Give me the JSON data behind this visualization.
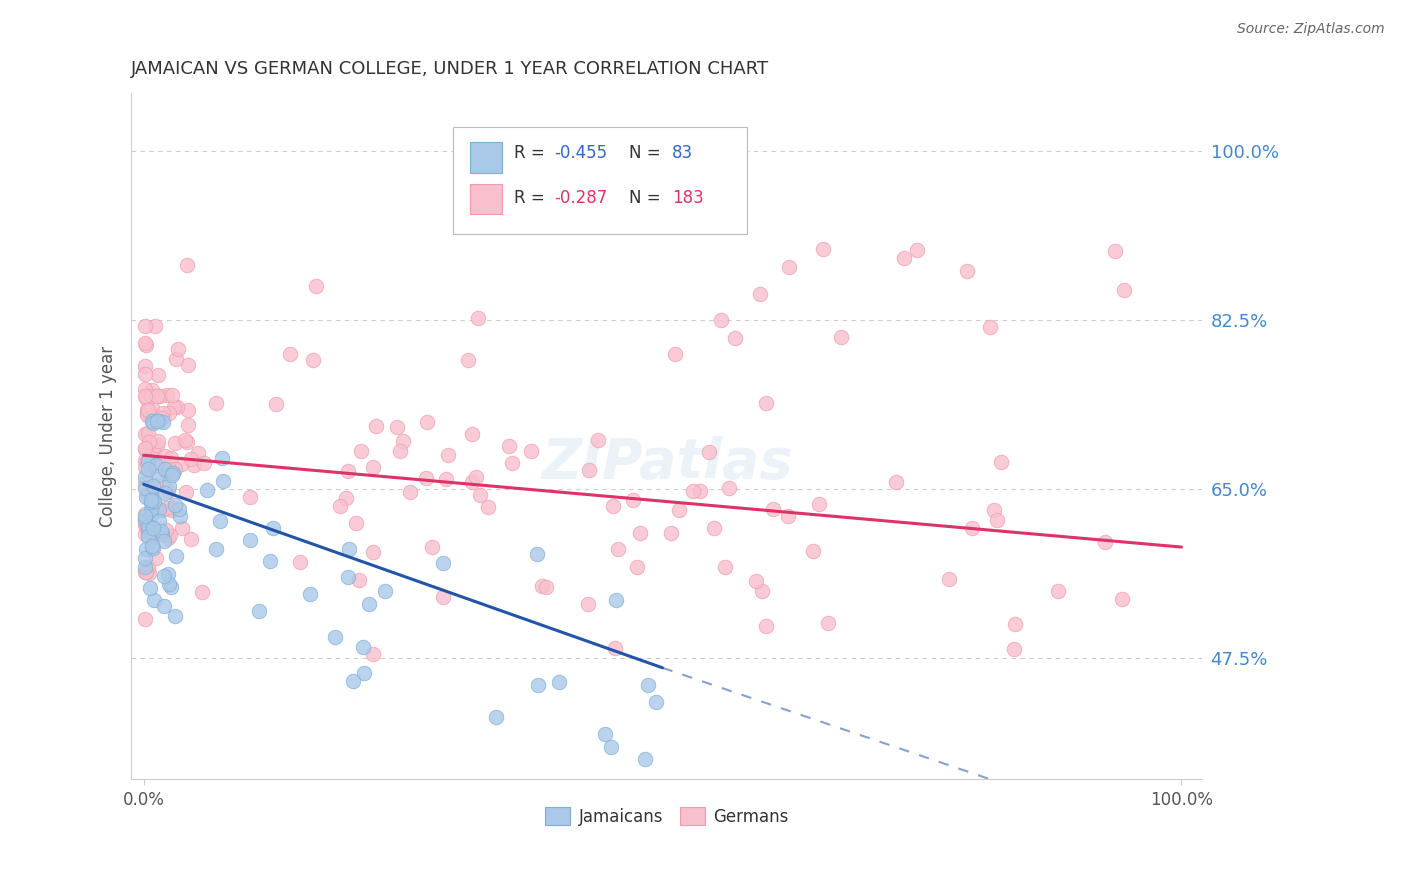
{
  "title": "JAMAICAN VS GERMAN COLLEGE, UNDER 1 YEAR CORRELATION CHART",
  "source": "Source: ZipAtlas.com",
  "ylabel": "College, Under 1 year",
  "y_tick_values": [
    0.475,
    0.65,
    0.825,
    1.0
  ],
  "y_tick_labels": [
    "47.5%",
    "65.0%",
    "82.5%",
    "100.0%"
  ],
  "x_tick_labels": [
    "0.0%",
    "100.0%"
  ],
  "jamaican_R": -0.455,
  "jamaican_N": 83,
  "german_R": -0.287,
  "german_N": 183,
  "watermark": "ZIPatlas",
  "blue_scatter_face": "#aac8e8",
  "blue_scatter_edge": "#7bafd4",
  "pink_scatter_face": "#f8bfcc",
  "pink_scatter_edge": "#f09aaa",
  "blue_line_color": "#2255aa",
  "pink_line_color": "#dd3366",
  "right_tick_color": "#4488cc",
  "title_color": "#333333",
  "source_color": "#666666",
  "ylabel_color": "#555555",
  "grid_color": "#cccccc",
  "legend_box_edge": "#cccccc",
  "legend_text_color": "#333333",
  "legend_R_color_blue": "#3366cc",
  "legend_R_color_pink": "#dd3366"
}
